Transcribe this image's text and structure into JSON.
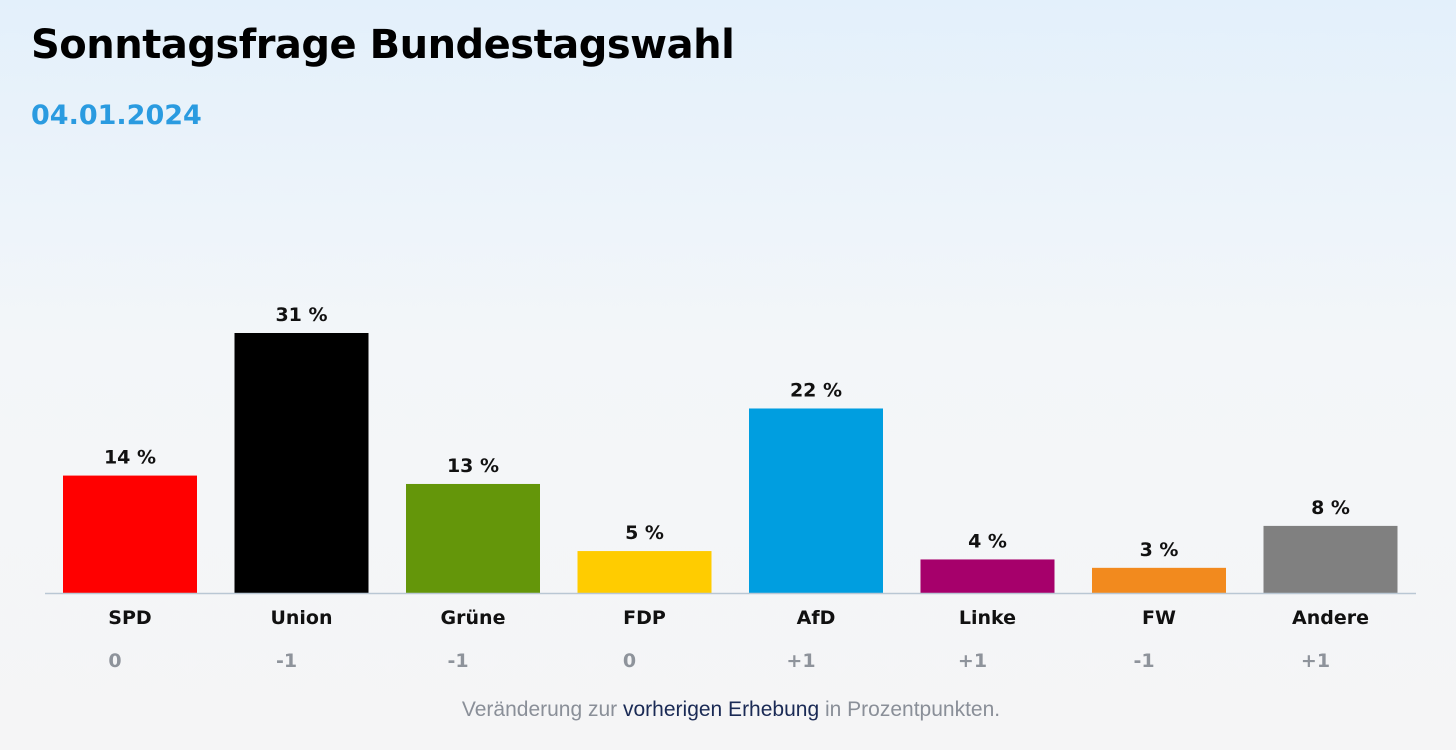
{
  "header": {
    "title": "Sonntagsfrage Bundestagswahl",
    "date": "04.01.2024"
  },
  "footnote": {
    "before": "Veränderung zur ",
    "link": "vorherigen Erhebung",
    "after": " in Prozentpunkten."
  },
  "chart_data": {
    "type": "bar",
    "title": "Sonntagsfrage Bundestagswahl",
    "subtitle": "04.01.2024",
    "categories": [
      "SPD",
      "Union",
      "Grüne",
      "FDP",
      "AfD",
      "Linke",
      "FW",
      "Andere"
    ],
    "values": [
      14,
      31,
      13,
      5,
      22,
      4,
      3,
      8
    ],
    "value_labels": [
      "14 %",
      "31 %",
      "13 %",
      "5 %",
      "22 %",
      "4 %",
      "3 %",
      "8 %"
    ],
    "changes": [
      "0",
      "-1",
      "-1",
      "0",
      "+1",
      "+1",
      "-1",
      "+1"
    ],
    "colors": [
      "#ff0000",
      "#000000",
      "#64960a",
      "#ffcc00",
      "#009ee0",
      "#a6006b",
      "#f28a1e",
      "#808080"
    ],
    "ylim": [
      0,
      31
    ],
    "xlabel": "",
    "ylabel": ""
  }
}
